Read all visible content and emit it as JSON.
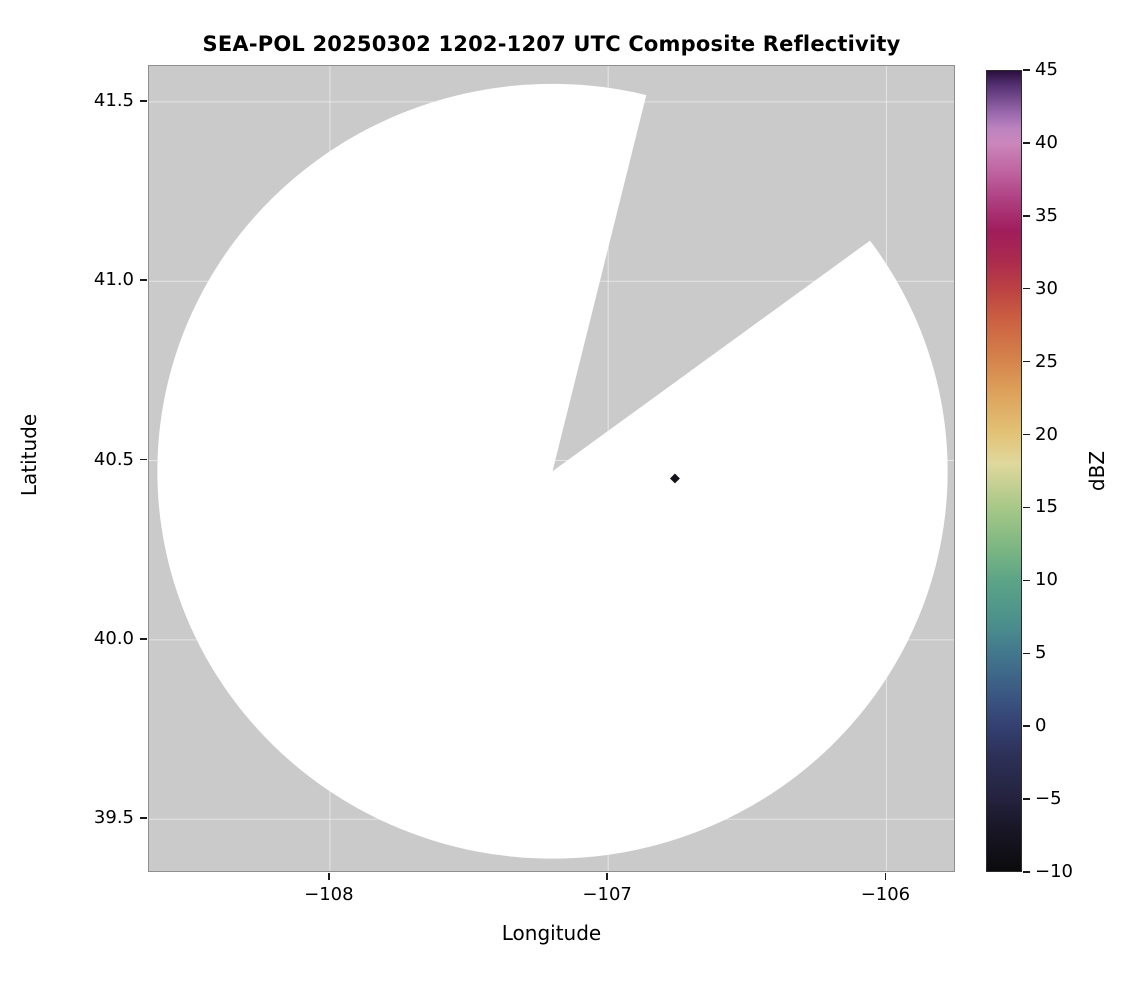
{
  "chart_data": {
    "type": "heatmap",
    "subtype": "radar-composite-reflectivity-map",
    "title": "SEA-POL 20250302 1202-1207 UTC Composite Reflectivity",
    "xlabel": "Longitude",
    "ylabel": "Latitude",
    "xlim": [
      -108.65,
      -105.75
    ],
    "ylim": [
      39.35,
      41.6
    ],
    "xticks": [
      -108,
      -107,
      -106
    ],
    "xtick_labels": [
      "−108",
      "−107",
      "−106"
    ],
    "yticks": [
      39.5,
      40.0,
      40.5,
      41.0,
      41.5
    ],
    "ytick_labels": [
      "39.5",
      "40.0",
      "40.5",
      "41.0",
      "41.5"
    ],
    "grid": true,
    "outside_coverage_color": "#cacaca",
    "coverage_color": "#ffffff",
    "gridline_color": "rgba(255,255,255,0.5)",
    "radar": {
      "center_lon": -107.2,
      "center_lat": 40.47,
      "range_lon_deg": 1.42,
      "range_lat_deg": 1.08,
      "blocked_sector_azimuth_deg": [
        14,
        54
      ]
    },
    "echoes": [
      {
        "lon": -106.76,
        "lat": 40.45,
        "dbz": -8,
        "color": "#13131b"
      }
    ],
    "colorbar": {
      "label": "dBZ",
      "min": -10,
      "max": 45,
      "ticks": [
        -10,
        -5,
        0,
        5,
        10,
        15,
        20,
        25,
        30,
        35,
        40,
        45
      ],
      "tick_labels": [
        "−10",
        "−5",
        "0",
        "5",
        "10",
        "15",
        "20",
        "25",
        "30",
        "35",
        "40",
        "45"
      ],
      "stops": [
        {
          "value": -10,
          "color": "#0b0b0d"
        },
        {
          "value": -7,
          "color": "#191726"
        },
        {
          "value": -5,
          "color": "#24223e"
        },
        {
          "value": -2,
          "color": "#2d3158"
        },
        {
          "value": 0,
          "color": "#344172"
        },
        {
          "value": 2,
          "color": "#3a5682"
        },
        {
          "value": 5,
          "color": "#42788e"
        },
        {
          "value": 7,
          "color": "#4b8f8c"
        },
        {
          "value": 10,
          "color": "#5ca487"
        },
        {
          "value": 12,
          "color": "#79b582"
        },
        {
          "value": 15,
          "color": "#a7c887"
        },
        {
          "value": 17,
          "color": "#cdd295"
        },
        {
          "value": 18,
          "color": "#e0d89d"
        },
        {
          "value": 20,
          "color": "#e2c377"
        },
        {
          "value": 23,
          "color": "#dda05a"
        },
        {
          "value": 25,
          "color": "#d6854c"
        },
        {
          "value": 28,
          "color": "#cb5f41"
        },
        {
          "value": 30,
          "color": "#bc4143"
        },
        {
          "value": 32,
          "color": "#ab2a4e"
        },
        {
          "value": 34,
          "color": "#a01d5c"
        },
        {
          "value": 36,
          "color": "#ad3d7e"
        },
        {
          "value": 38,
          "color": "#bf62a0"
        },
        {
          "value": 40,
          "color": "#cb86bb"
        },
        {
          "value": 41,
          "color": "#bd84c0"
        },
        {
          "value": 42,
          "color": "#9e6bb0"
        },
        {
          "value": 44,
          "color": "#553173"
        },
        {
          "value": 45,
          "color": "#2a0f3d"
        }
      ]
    }
  }
}
